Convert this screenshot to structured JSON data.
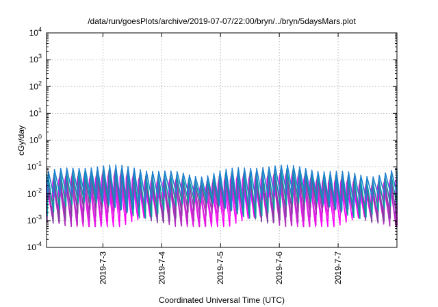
{
  "chart_data": {
    "type": "line",
    "title": "/data/run/goesPlots/archive/2019-07-07/22:00/bryn/../bryn/5daysMars.plot",
    "xlabel": "Coordinated Universal Time (UTC)",
    "ylabel": "cGy/day",
    "yscale": "log",
    "ylim": [
      0.0001,
      10000
    ],
    "xlim": [
      "2019-07-02T01:00",
      "2019-07-08T00:00"
    ],
    "grid": true,
    "legend": "none",
    "y_ticks": [
      {
        "base": "10",
        "exp": "-4",
        "value": 0.0001
      },
      {
        "base": "10",
        "exp": "-3",
        "value": 0.001
      },
      {
        "base": "10",
        "exp": "-2",
        "value": 0.01
      },
      {
        "base": "10",
        "exp": "-1",
        "value": 0.1
      },
      {
        "base": "10",
        "exp": "0",
        "value": 1
      },
      {
        "base": "10",
        "exp": "1",
        "value": 10
      },
      {
        "base": "10",
        "exp": "2",
        "value": 100
      },
      {
        "base": "10",
        "exp": "3",
        "value": 1000
      },
      {
        "base": "10",
        "exp": "4",
        "value": 10000
      }
    ],
    "x_ticks": [
      {
        "label": "2019-7-3",
        "value": "2019-07-03T00:00"
      },
      {
        "label": "2019-7-4",
        "value": "2019-07-04T00:00"
      },
      {
        "label": "2019-7-5",
        "value": "2019-07-05T00:00"
      },
      {
        "label": "2019-7-6",
        "value": "2019-07-06T00:00"
      },
      {
        "label": "2019-7-7",
        "value": "2019-07-07T00:00"
      }
    ],
    "series": [
      {
        "color": "#ff00ff",
        "cycle_hours": 2.5,
        "peak": 0.03,
        "trough": 0.0009
      },
      {
        "color": "#e020e0",
        "cycle_hours": 2.5,
        "peak": 0.035,
        "trough": 0.0012
      },
      {
        "color": "#b030c0",
        "cycle_hours": 2.5,
        "peak": 0.04,
        "trough": 0.0015
      },
      {
        "color": "#8040a0",
        "cycle_hours": 2.5,
        "peak": 0.05,
        "trough": 0.002
      },
      {
        "color": "#00a0a0",
        "cycle_hours": 2.5,
        "peak": 0.06,
        "trough": 0.003
      },
      {
        "color": "#2080d0",
        "cycle_hours": 2.5,
        "peak": 0.08,
        "trough": 0.006
      }
    ],
    "series_values": [
      {
        "x": "2019-07-02T01:00",
        "peak": 0.03,
        "trough": 0.0009
      },
      {
        "x": "2019-07-08T00:00",
        "peak": 0.1,
        "trough": 0.001
      }
    ]
  }
}
